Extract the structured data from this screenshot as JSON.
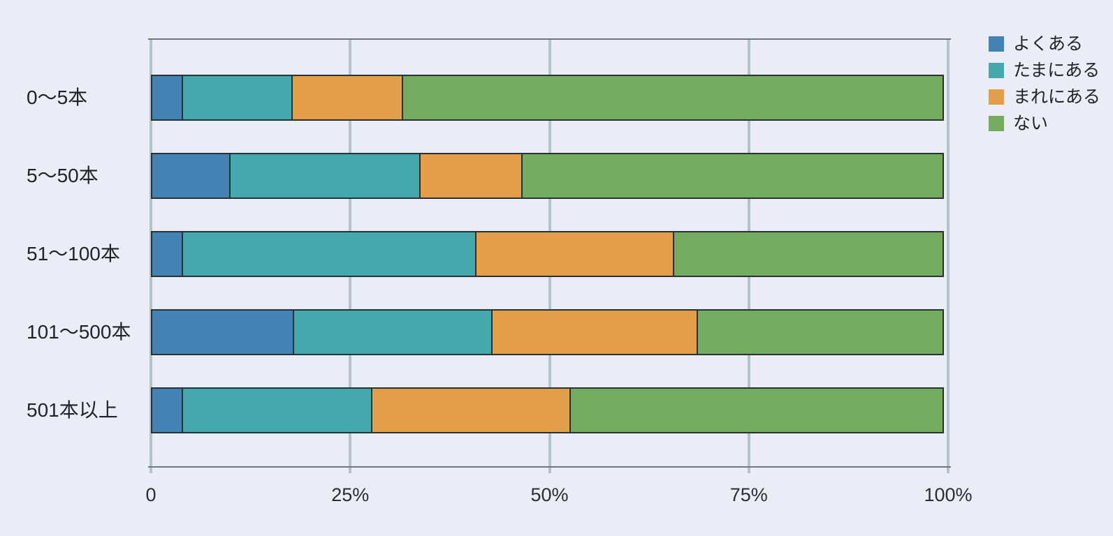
{
  "page": {
    "background": "#eaedf6"
  },
  "colors": {
    "background": "#eaedf6",
    "gridline": "#b6c2cc",
    "plot_border": "#6e767e",
    "bar_border": "#263238",
    "text": "#1f2328"
  },
  "chart_data": {
    "type": "bar",
    "orientation": "horizontal",
    "stacked": true,
    "stack_total": 100,
    "unit": "%",
    "title": "",
    "xlabel": "",
    "ylabel": "",
    "grid": true,
    "legend_position": "top-right",
    "categories": [
      "0〜5本",
      "5〜50本",
      "51〜100本",
      "101〜500本",
      "501本以上"
    ],
    "series": [
      {
        "name": "よくある",
        "color": "#4383b4",
        "values": [
          4,
          10,
          4,
          18,
          4
        ]
      },
      {
        "name": "たまにある",
        "color": "#44a8ad",
        "values": [
          14,
          24,
          37,
          25,
          24
        ]
      },
      {
        "name": "まれにある",
        "color": "#e39e4a",
        "values": [
          14,
          13,
          25,
          26,
          25
        ]
      },
      {
        "name": "ない",
        "color": "#73ab61",
        "values": [
          68,
          53,
          34,
          31,
          47
        ]
      }
    ],
    "x_axis": {
      "range": [
        0,
        100
      ],
      "tick_values": [
        0,
        25,
        50,
        75,
        100
      ],
      "tick_labels": [
        "0",
        "25%",
        "50%",
        "75%",
        "100%"
      ]
    }
  }
}
